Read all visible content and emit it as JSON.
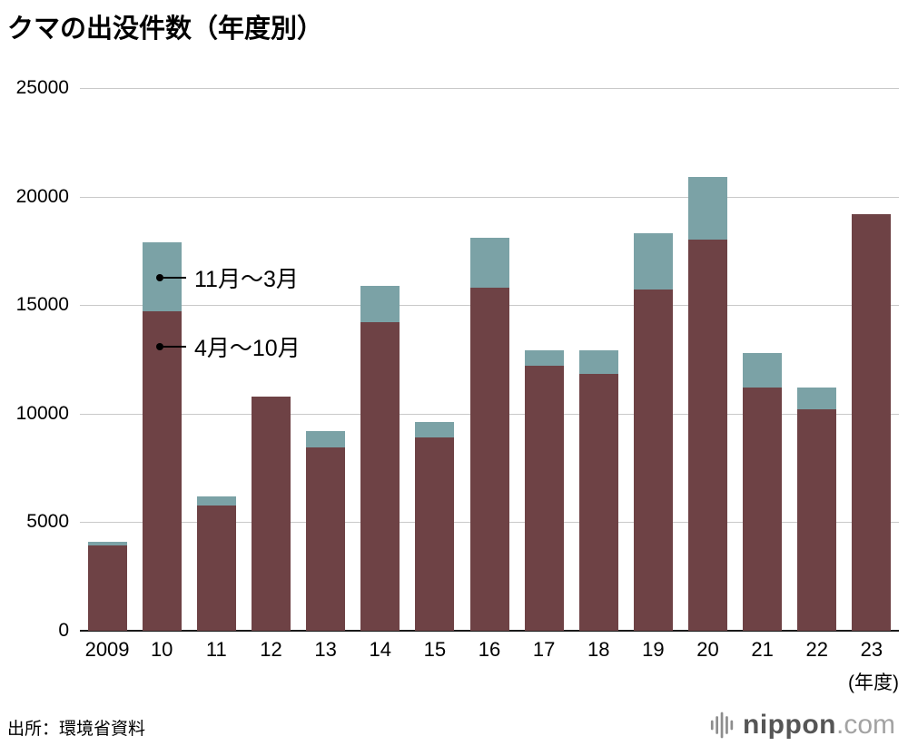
{
  "title": "クマの出没件数（年度別）",
  "source": "出所：環境省資料",
  "x_unit_label": "(年度)",
  "logo": {
    "name": "nippon",
    "suffix": ".com"
  },
  "chart_data": {
    "type": "bar",
    "stacked": true,
    "title": "クマの出没件数（年度別）",
    "categories": [
      "2009",
      "10",
      "11",
      "12",
      "13",
      "14",
      "15",
      "16",
      "17",
      "18",
      "19",
      "20",
      "21",
      "22",
      "23"
    ],
    "series": [
      {
        "name": "4月〜10月",
        "color": "#6e4245",
        "values": [
          3950,
          14700,
          5750,
          10800,
          8450,
          14200,
          8900,
          15800,
          12200,
          11850,
          15700,
          18000,
          11200,
          10200,
          19200
        ]
      },
      {
        "name": "11月〜3月",
        "color": "#7ba2a6",
        "values": [
          150,
          3200,
          450,
          0,
          750,
          1700,
          700,
          2300,
          700,
          1050,
          2600,
          2900,
          1600,
          1000,
          0
        ]
      }
    ],
    "totals": [
      4100,
      17900,
      6200,
      10800,
      9200,
      15900,
      9600,
      18100,
      12900,
      12900,
      18300,
      20900,
      12800,
      11200,
      19200
    ],
    "ylim": [
      0,
      25000
    ],
    "yticks": [
      0,
      5000,
      10000,
      15000,
      20000,
      25000
    ],
    "xlabel": "(年度)",
    "ylabel": "",
    "grid": "horizontal",
    "legend_position": "annotations-on-plot",
    "annotations": [
      {
        "text": "11月〜3月",
        "points_to": "11月〜3月 segment of 2010 bar"
      },
      {
        "text": "4月〜10月",
        "points_to": "4月〜10月 segment of 2010 bar"
      }
    ]
  }
}
